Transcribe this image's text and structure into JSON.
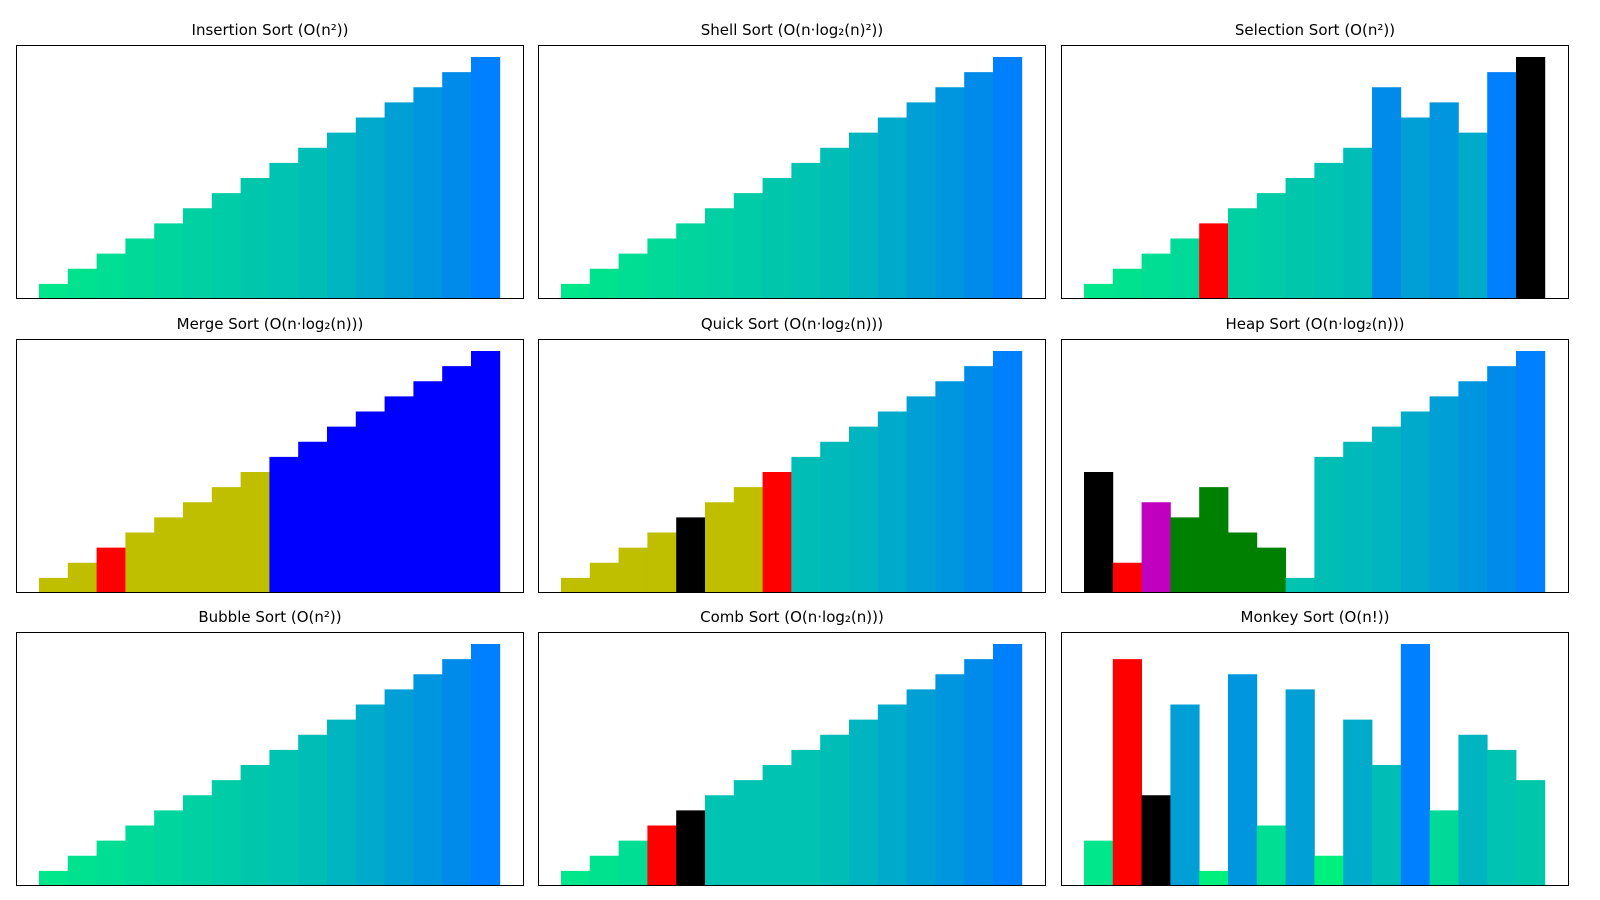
{
  "chart_data": [
    {
      "type": "bar",
      "title": {
        "name": "Insertion Sort",
        "complexity": "O(n²)"
      },
      "values": [
        1,
        2,
        3,
        4,
        5,
        6,
        7,
        8,
        9,
        10,
        11,
        12,
        13,
        14,
        15,
        16
      ],
      "colors": [
        "#00e68a",
        "#00e28e",
        "#00de93",
        "#00d998",
        "#00d59d",
        "#00d0a2",
        "#00cca7",
        "#00c7ac",
        "#00c3b1",
        "#00beb6",
        "#00b4c0",
        "#00aacb",
        "#009fd5",
        "#0095df",
        "#008aea",
        "#0080ff"
      ]
    },
    {
      "type": "bar",
      "title": {
        "name": "Shell Sort",
        "complexity": "O(n·log₂(n)²)"
      },
      "values": [
        1,
        2,
        3,
        4,
        5,
        6,
        7,
        8,
        9,
        10,
        11,
        12,
        13,
        14,
        15,
        16
      ],
      "colors": [
        "#00e68a",
        "#00e28e",
        "#00de93",
        "#00d998",
        "#00d59d",
        "#00d0a2",
        "#00cca7",
        "#00c7ac",
        "#00c3b1",
        "#00beb6",
        "#00b4c0",
        "#00aacb",
        "#009fd5",
        "#0095df",
        "#008aea",
        "#0080ff"
      ]
    },
    {
      "type": "bar",
      "title": {
        "name": "Selection Sort",
        "complexity": "O(n²)"
      },
      "values": [
        1,
        2,
        3,
        4,
        5,
        6,
        7,
        8,
        9,
        10,
        14,
        12,
        13,
        11,
        15,
        16
      ],
      "colors": [
        "#00e68a",
        "#00e28e",
        "#00de93",
        "#00d998",
        "#ff0000",
        "#00d0a2",
        "#00cca7",
        "#00c7ac",
        "#00c3b1",
        "#00beb6",
        "#008aea",
        "#009fd5",
        "#0095df",
        "#00aacb",
        "#0080ff",
        "#000000"
      ]
    },
    {
      "type": "bar",
      "title": {
        "name": "Merge Sort",
        "complexity": "O(n·log₂(n))"
      },
      "values": [
        1,
        2,
        3,
        4,
        5,
        6,
        7,
        8,
        9,
        10,
        11,
        12,
        13,
        14,
        15,
        16
      ],
      "colors": [
        "#bfbf00",
        "#bfbf00",
        "#ff0000",
        "#bfbf00",
        "#bfbf00",
        "#bfbf00",
        "#bfbf00",
        "#bfbf00",
        "#0000ff",
        "#0000ff",
        "#0000ff",
        "#0000ff",
        "#0000ff",
        "#0000ff",
        "#0000ff",
        "#0000ff"
      ]
    },
    {
      "type": "bar",
      "title": {
        "name": "Quick Sort",
        "complexity": "O(n·log₂(n))"
      },
      "values": [
        1,
        2,
        3,
        4,
        5,
        6,
        7,
        8,
        9,
        10,
        11,
        12,
        13,
        14,
        15,
        16
      ],
      "colors": [
        "#bfbf00",
        "#bfbf00",
        "#bfbf00",
        "#bfbf00",
        "#000000",
        "#bfbf00",
        "#bfbf00",
        "#ff0000",
        "#00beb6",
        "#00b9bb",
        "#00b4c0",
        "#00aacb",
        "#009fd5",
        "#0095df",
        "#008aea",
        "#0080ff"
      ]
    },
    {
      "type": "bar",
      "title": {
        "name": "Heap Sort",
        "complexity": "O(n·log₂(n))"
      },
      "values": [
        8,
        2,
        6,
        5,
        7,
        4,
        3,
        1,
        9,
        10,
        11,
        12,
        13,
        14,
        15,
        16
      ],
      "colors": [
        "#000000",
        "#ff0000",
        "#bf00bf",
        "#008000",
        "#008000",
        "#008000",
        "#008000",
        "#00c3b1",
        "#00beb6",
        "#00b9bb",
        "#00b4c0",
        "#00aacb",
        "#009fd5",
        "#0095df",
        "#008aea",
        "#0080ff"
      ]
    },
    {
      "type": "bar",
      "title": {
        "name": "Bubble Sort",
        "complexity": "O(n²)"
      },
      "values": [
        1,
        2,
        3,
        4,
        5,
        6,
        7,
        8,
        9,
        10,
        11,
        12,
        13,
        14,
        15,
        16
      ],
      "colors": [
        "#00e68a",
        "#00e28e",
        "#00de93",
        "#00d998",
        "#00d59d",
        "#00d0a2",
        "#00cca7",
        "#00c7ac",
        "#00c3b1",
        "#00beb6",
        "#00b4c0",
        "#00aacb",
        "#009fd5",
        "#0095df",
        "#008aea",
        "#0080ff"
      ]
    },
    {
      "type": "bar",
      "title": {
        "name": "Comb Sort",
        "complexity": "O(n·log₂(n))"
      },
      "values": [
        1,
        2,
        3,
        4,
        5,
        6,
        7,
        8,
        9,
        10,
        11,
        12,
        13,
        14,
        15,
        16
      ],
      "colors": [
        "#00e68a",
        "#00e28e",
        "#00de93",
        "#ff0000",
        "#000000",
        "#00c3b1",
        "#00c3b1",
        "#00c3b1",
        "#00c3b1",
        "#00beb6",
        "#00b4c0",
        "#00aacb",
        "#009fd5",
        "#0095df",
        "#008aea",
        "#0080ff"
      ]
    },
    {
      "type": "bar",
      "title": {
        "name": "Monkey Sort",
        "complexity": "O(n!)"
      },
      "values": [
        3,
        15,
        6,
        12,
        1,
        14,
        4,
        13,
        2,
        11,
        8,
        16,
        5,
        10,
        9,
        7
      ],
      "colors": [
        "#00e68a",
        "#ff0000",
        "#000000",
        "#009fd5",
        "#00f07e",
        "#0095df",
        "#00de93",
        "#009fd5",
        "#00f07e",
        "#00aacb",
        "#00beb6",
        "#0080ff",
        "#00d998",
        "#00b4c0",
        "#00c3b1",
        "#00c7ac"
      ]
    }
  ]
}
